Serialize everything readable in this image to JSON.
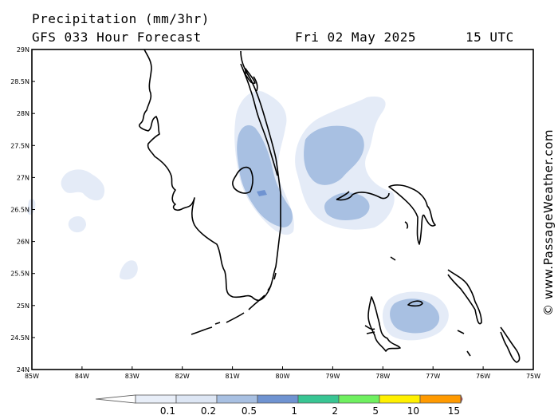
{
  "title": {
    "line1": "Precipitation (mm/3hr)",
    "model": "GFS 033 Hour Forecast",
    "date": "Fri 02 May 2025",
    "time": "15 UTC"
  },
  "map": {
    "lon_range": [
      -85,
      -75
    ],
    "lat_range": [
      24,
      29
    ],
    "lon_labels": [
      "85W",
      "84W",
      "83W",
      "82W",
      "81W",
      "80W",
      "79W",
      "78W",
      "77W",
      "76W",
      "75W"
    ],
    "lat_labels": [
      "29N",
      "28.5N",
      "28N",
      "27.5N",
      "27N",
      "26.5N",
      "26N",
      "25.5N",
      "25N",
      "24.5N",
      "24N"
    ]
  },
  "legend": {
    "colors": [
      "#e8eef8",
      "#dde6f4",
      "#a8c0e2",
      "#6f93d1",
      "#38c593",
      "#6ff060",
      "#fff000",
      "#ff9a00",
      "#e84040"
    ],
    "labels": [
      "0.1",
      "0.2",
      "0.5",
      "1",
      "2",
      "5",
      "10",
      "15"
    ]
  },
  "credit": "© www.PassageWeather.com"
}
